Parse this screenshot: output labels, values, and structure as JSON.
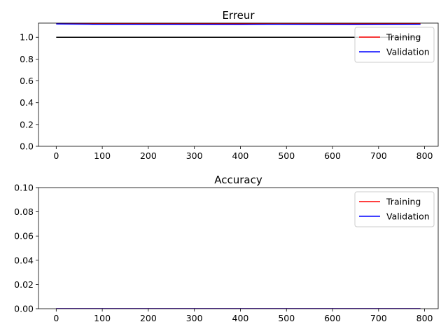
{
  "chart_data": [
    {
      "type": "line",
      "title": "Erreur",
      "xlabel": "",
      "ylabel": "",
      "xlim": [
        -38.5,
        829.5
      ],
      "ylim": [
        0,
        1.13
      ],
      "xticks": [
        0,
        100,
        200,
        300,
        400,
        500,
        600,
        700,
        800
      ],
      "yticks": [
        0.0,
        0.2,
        0.4,
        0.6,
        0.8,
        1.0
      ],
      "ytick_labels": [
        "0.0",
        "0.2",
        "0.4",
        "0.6",
        "0.8",
        "1.0"
      ],
      "grid": false,
      "legend_position": "top-right",
      "series": [
        {
          "name": "Training",
          "color": "#ff0000",
          "x": [
            0,
            400,
            480,
            720,
            791
          ],
          "y": [
            1.124,
            1.124,
            1.123,
            1.124,
            1.124
          ]
        },
        {
          "name": "Validation",
          "color": "#0000ff",
          "x": [
            0,
            80,
            400,
            480,
            640,
            791
          ],
          "y": [
            1.122,
            1.119,
            1.117,
            1.119,
            1.117,
            1.119
          ]
        },
        {
          "color": "#000000",
          "x": [
            0,
            791
          ],
          "y": [
            1.0,
            1.0
          ]
        }
      ]
    },
    {
      "type": "line",
      "title": "Accuracy",
      "xlabel": "",
      "ylabel": "",
      "xlim": [
        -38.5,
        829.5
      ],
      "ylim": [
        0,
        0.1
      ],
      "xticks": [
        0,
        100,
        200,
        300,
        400,
        500,
        600,
        700,
        800
      ],
      "yticks": [
        0.0,
        0.02,
        0.04,
        0.06,
        0.08,
        0.1
      ],
      "ytick_labels": [
        "0.00",
        "0.02",
        "0.04",
        "0.06",
        "0.08",
        "0.10"
      ],
      "grid": false,
      "legend_position": "top-right",
      "series": [
        {
          "name": "Training",
          "color": "#ff0000",
          "x": [
            0,
            791
          ],
          "y": [
            0,
            0
          ]
        },
        {
          "name": "Validation",
          "color": "#0000ff",
          "x": [
            0,
            791
          ],
          "y": [
            0,
            0
          ]
        }
      ]
    }
  ]
}
